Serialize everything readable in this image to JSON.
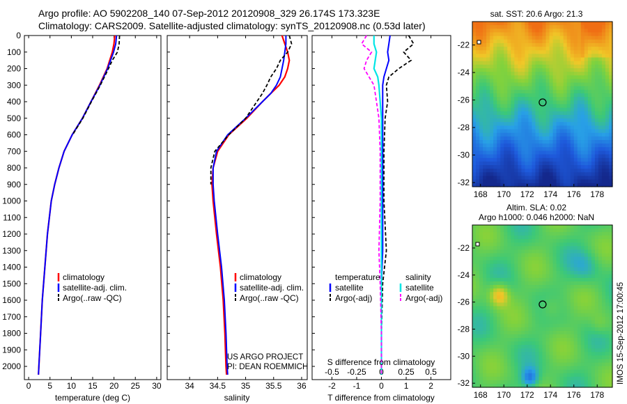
{
  "header": {
    "title_line1": "Argo profile: AO 5902208_140 07-Sep-2012 20120908_329 26.174S 173.323E",
    "title_line2": "Climatology: CARS2009. Satellite-adjusted climatology: synTS_20120908.nc (0.53d later)"
  },
  "colors": {
    "climatology": "#ff0000",
    "satellite": "#0000ff",
    "argo": "#000000",
    "sal_sat": "#00e5e5",
    "sal_argo": "#ff00ff"
  },
  "chart_data": [
    {
      "type": "line",
      "panel": "temperature",
      "xlabel": "temperature (deg C)",
      "ylabel": "",
      "xlim": [
        -1,
        31
      ],
      "ylim": [
        2080,
        0
      ],
      "xticks": [
        0,
        5,
        10,
        15,
        20,
        25,
        30
      ],
      "yticks": [
        0,
        100,
        200,
        300,
        400,
        500,
        600,
        700,
        800,
        900,
        1000,
        1100,
        1200,
        1300,
        1400,
        1500,
        1600,
        1700,
        1800,
        1900,
        2000
      ],
      "depth": [
        0,
        50,
        100,
        150,
        200,
        300,
        400,
        500,
        600,
        700,
        800,
        900,
        1000,
        1200,
        1400,
        1600,
        1800,
        2000,
        2050
      ],
      "series": [
        {
          "name": "climatology",
          "values": [
            20.2,
            20.0,
            19.6,
            19.0,
            18.4,
            16.6,
            14.6,
            12.6,
            10.2,
            8.3,
            7.1,
            6.1,
            5.3,
            4.4,
            3.8,
            3.2,
            2.8,
            2.4,
            2.3
          ]
        },
        {
          "name": "satellite-adj. clim.",
          "values": [
            20.6,
            20.4,
            19.9,
            19.2,
            18.5,
            16.7,
            14.6,
            12.6,
            10.2,
            8.3,
            7.1,
            6.1,
            5.3,
            4.4,
            3.8,
            3.2,
            2.8,
            2.4,
            2.3
          ]
        },
        {
          "name": "Argo(..raw -QC)",
          "values": [
            21.3,
            21.2,
            20.8,
            19.6,
            18.7,
            16.8,
            14.7,
            12.7,
            10.3,
            null,
            null,
            null,
            null,
            null,
            null,
            null,
            null,
            null,
            null
          ]
        }
      ],
      "legend": [
        "climatology",
        "satellite-adj. clim.",
        "Argo(..raw -QC)"
      ],
      "legend_position": "lower-center"
    },
    {
      "type": "line",
      "panel": "salinity",
      "xlabel": "salinity",
      "xlim": [
        33.6,
        36.1
      ],
      "ylim": [
        2080,
        0
      ],
      "xticks": [
        34,
        34.5,
        35,
        35.5,
        36
      ],
      "xtick_labels": [
        "34",
        "34.5",
        "35",
        "35.5",
        "36"
      ],
      "depth": [
        0,
        50,
        100,
        150,
        200,
        250,
        300,
        350,
        400,
        500,
        600,
        700,
        800,
        900,
        1000,
        1200,
        1400,
        1600,
        1800,
        2000,
        2050
      ],
      "series": [
        {
          "name": "climatology",
          "values": [
            35.65,
            35.7,
            35.75,
            35.78,
            35.75,
            35.7,
            35.6,
            35.45,
            35.3,
            35.02,
            34.7,
            34.5,
            34.42,
            34.4,
            34.42,
            34.48,
            34.55,
            34.6,
            34.63,
            34.65,
            34.66
          ]
        },
        {
          "name": "satellite-adj. clim.",
          "values": [
            35.72,
            35.72,
            35.7,
            35.68,
            35.65,
            35.62,
            35.55,
            35.45,
            35.3,
            35.0,
            34.68,
            34.48,
            34.42,
            34.42,
            34.44,
            34.5,
            34.57,
            34.62,
            34.65,
            34.67,
            34.68
          ]
        },
        {
          "name": "Argo(..raw -QC)",
          "values": [
            35.78,
            35.82,
            35.75,
            35.62,
            35.55,
            35.45,
            35.38,
            35.3,
            35.2,
            35.0,
            34.7,
            34.45,
            34.38,
            34.38,
            null,
            null,
            null,
            null,
            null,
            null,
            null
          ]
        }
      ],
      "legend": [
        "climatology",
        "satellite-adj. clim.",
        "Argo(..raw -QC)"
      ],
      "legend_position": "lower-center",
      "annotation": [
        "US ARGO PROJECT",
        "PI: DEAN ROEMMICH"
      ]
    },
    {
      "type": "line",
      "panel": "difference",
      "xlabel": "T difference from climatology",
      "xlabel_top": "S difference from climatology",
      "xlim": [
        -2.8,
        2.8
      ],
      "ylim": [
        2080,
        0
      ],
      "xticks": [
        -2,
        -1,
        0,
        1,
        2
      ],
      "s_ticks_pos": [
        -2,
        -1,
        0,
        1,
        2
      ],
      "s_tick_labels": [
        "-0.5",
        "-0.25",
        "0",
        "0.25",
        "0.5"
      ],
      "depth": [
        0,
        50,
        100,
        150,
        200,
        250,
        300,
        400,
        500,
        700,
        1000,
        1300,
        1500,
        1800,
        2050
      ],
      "series": [
        {
          "name": "temperature satellite",
          "values": [
            0.35,
            0.3,
            0.25,
            0.3,
            0.2,
            0.1,
            0.05,
            0.05,
            0.05,
            0.05,
            0.05,
            0.05,
            0.0,
            0.0,
            0.0
          ]
        },
        {
          "name": "temperature Argo(-adj)",
          "values": [
            1.1,
            1.3,
            0.9,
            1.2,
            0.7,
            0.3,
            0.2,
            0.25,
            0.15,
            0.1,
            0.1,
            0.2,
            0.05,
            0.0,
            0.0
          ]
        },
        {
          "name": "salinity satellite",
          "values": [
            -0.3,
            -0.3,
            -0.2,
            -0.25,
            -0.3,
            -0.15,
            -0.1,
            -0.05,
            0.0,
            0.0,
            0.0,
            0.0,
            0.0,
            0.0,
            0.0
          ]
        },
        {
          "name": "salinity Argo(-adj)",
          "values": [
            -0.6,
            -0.8,
            -0.4,
            -0.6,
            -0.7,
            -0.5,
            -0.3,
            -0.2,
            -0.1,
            -0.05,
            -0.05,
            -0.1,
            -0.05,
            0.0,
            0.0
          ]
        }
      ],
      "legend_temperature": {
        "heading": "temperature",
        "items": [
          "satellite",
          "Argo(-adj)"
        ]
      },
      "legend_salinity": {
        "heading": "salinity",
        "items": [
          "satellite",
          "Argo(-adj)"
        ]
      }
    },
    {
      "type": "heatmap",
      "panel": "sst_map",
      "title": "sat. SST: 20.6 Argo: 21.3",
      "xlim": [
        167.3,
        179.3
      ],
      "ylim": [
        -32.3,
        -20.3
      ],
      "xticks": [
        168,
        170,
        172,
        174,
        176,
        178
      ],
      "yticks": [
        -22,
        -24,
        -26,
        -28,
        -30,
        -32
      ],
      "marker": {
        "lon": 173.323,
        "lat": -26.174
      }
    },
    {
      "type": "heatmap",
      "panel": "sla_map",
      "title_line1": "Altim. SLA: 0.02",
      "title_line2": "Argo h1000: 0.046 h2000: NaN",
      "xlim": [
        167.3,
        179.3
      ],
      "ylim": [
        -32.3,
        -20.3
      ],
      "xticks": [
        168,
        170,
        172,
        174,
        176,
        178
      ],
      "yticks": [
        -22,
        -24,
        -26,
        -28,
        -30,
        -32
      ],
      "marker": {
        "lon": 173.323,
        "lat": -26.174
      }
    }
  ],
  "side_label": "IMOS 15-Sep-2012 17:00:45"
}
